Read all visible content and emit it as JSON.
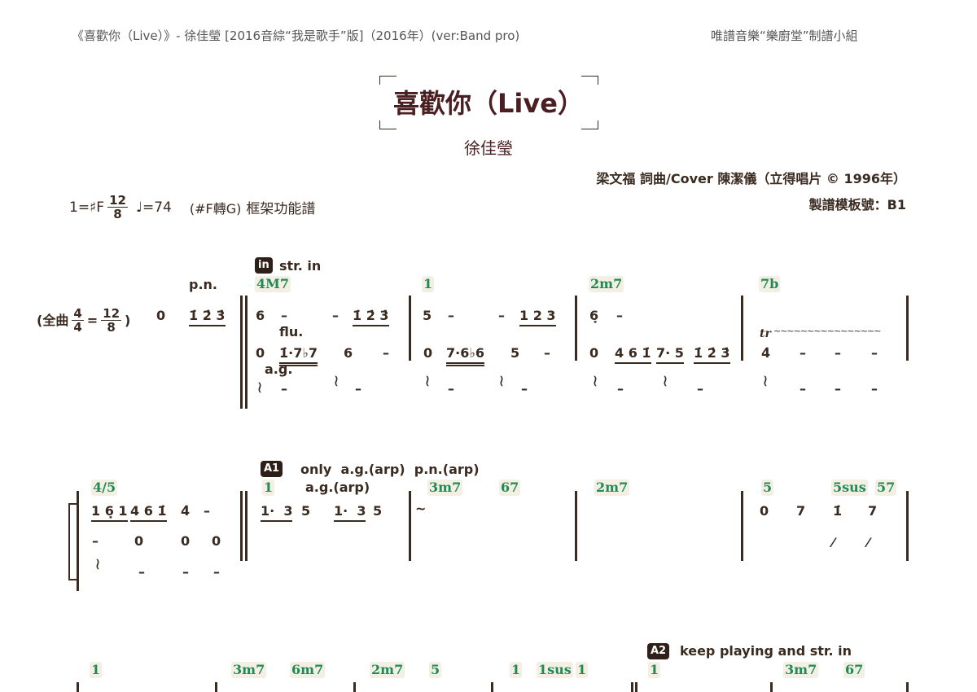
{
  "header": {
    "left": "《喜歡你（Live）》- 徐佳瑩 [2016音綜“我是歌手”版]（2016年）(ver:Band pro)",
    "right": "唯譜音樂“樂廚堂”制譜小組"
  },
  "title": "喜歡你（Live）",
  "artist": "徐佳瑩",
  "credits": "梁文福 詞曲/Cover 陳潔儀（立得唱片 © 1996年）",
  "template": "製譜模板號：B1",
  "key": {
    "key": "1=♯F",
    "time_num": "12",
    "time_den": "8",
    "tempo": "♩=74",
    "modulation": "(#F轉G)",
    "score_type": "框架功能譜"
  },
  "s1": {
    "badge": "in",
    "badge_text": "str. in",
    "pn": "p.n.",
    "flu": "flu.",
    "ag": "a.g.",
    "prefix": {
      "open": "(全曲",
      "num1": "4",
      "den1": "4",
      "eq": "=",
      "num2": "12",
      "den2": "8",
      "close": ")",
      "rest": "0",
      "pickup": "1̇ 2̇ 3̇"
    },
    "chords": [
      "4M7",
      "1",
      "2m7",
      "7b"
    ],
    "m1": {
      "l1": [
        "6",
        "–",
        "–",
        "1̇ 2̇ 3̇"
      ],
      "l2": [
        "0",
        "1̇·7♭7",
        "6",
        "–"
      ],
      "l3": [
        "–",
        "–"
      ]
    },
    "m2": {
      "l1": [
        "5",
        "–",
        "–",
        "1 2 3"
      ],
      "l2": [
        "0",
        "7·6♭6",
        "5",
        "–"
      ],
      "l3": [
        "–",
        "–"
      ]
    },
    "m3": {
      "l1": [
        "6̣",
        "–"
      ],
      "l2": [
        "0",
        "4 6 1̇",
        "7· 5",
        "1̇ 2̇ 3̇"
      ],
      "l3": [
        "–",
        "–"
      ]
    },
    "m4": {
      "trill": "tr",
      "trill_line": "~~~~~~~~~~~~~~~~",
      "l2": [
        "4̇",
        "–",
        "–",
        "–"
      ],
      "l3": [
        "–",
        "–",
        "–"
      ]
    }
  },
  "s2": {
    "badge": "A1",
    "badge_text": "only  a.g.(arp)  p.n.(arp)",
    "ag_arp": "a.g.(arp)",
    "chords": [
      "4/5",
      "1",
      "3m7",
      "67",
      "2m7",
      "5",
      "5sus",
      "57"
    ],
    "m0": {
      "l1": [
        "1 6̣ 1",
        "4 6 1̇",
        "4̇",
        "–"
      ],
      "l2": [
        "–",
        "0",
        "0",
        "0"
      ],
      "l3": [
        "–",
        "–",
        "–"
      ]
    },
    "m1": {
      "l1": [
        "1·  3",
        "5",
        "1·  3",
        "5"
      ]
    },
    "m2": {
      "l1": [
        "~"
      ]
    },
    "m4": {
      "l1": [
        "0",
        "7",
        "1̇",
        "7"
      ],
      "l2": [
        "⁄",
        "⁄"
      ]
    }
  },
  "s3": {
    "badge": "A2",
    "badge_text": "keep playing and str. in",
    "chords": [
      "1",
      "3m7",
      "6m7",
      "2m7",
      "5",
      "1",
      "1sus",
      "1",
      "1",
      "3m7",
      "67"
    ]
  }
}
